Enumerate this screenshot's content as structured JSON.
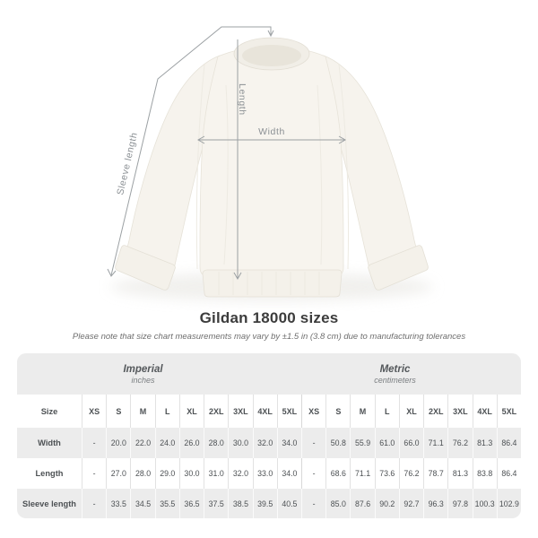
{
  "diagram": {
    "labels": {
      "length": "Length",
      "width": "Width",
      "sleeve": "Sleeve length"
    }
  },
  "title": "Gildan 18000 sizes",
  "subtitle": "Please note that size chart measurements may vary by ±1.5 in (3.8 cm) due to manufacturing tolerances",
  "size_table": {
    "corner_header": "Size",
    "unit_groups": [
      {
        "name": "Imperial",
        "unit": "inches"
      },
      {
        "name": "Metric",
        "unit": "centimeters"
      }
    ],
    "size_headers": [
      "XS",
      "S",
      "M",
      "L",
      "XL",
      "2XL",
      "3XL",
      "4XL",
      "5XL",
      "XS",
      "S",
      "M",
      "L",
      "XL",
      "2XL",
      "3XL",
      "4XL",
      "5XL"
    ],
    "rows": [
      {
        "label": "Width",
        "values": [
          "-",
          "20.0",
          "22.0",
          "24.0",
          "26.0",
          "28.0",
          "30.0",
          "32.0",
          "34.0",
          "-",
          "50.8",
          "55.9",
          "61.0",
          "66.0",
          "71.1",
          "76.2",
          "81.3",
          "86.4"
        ]
      },
      {
        "label": "Length",
        "values": [
          "-",
          "27.0",
          "28.0",
          "29.0",
          "30.0",
          "31.0",
          "32.0",
          "33.0",
          "34.0",
          "-",
          "68.6",
          "71.1",
          "73.6",
          "76.2",
          "78.7",
          "81.3",
          "83.8",
          "86.4"
        ]
      },
      {
        "label": "Sleeve length",
        "values": [
          "-",
          "33.5",
          "34.5",
          "35.5",
          "36.5",
          "37.5",
          "38.5",
          "39.5",
          "40.5",
          "-",
          "85.0",
          "87.6",
          "90.2",
          "92.7",
          "96.3",
          "97.8",
          "100.3",
          "102.9"
        ]
      }
    ]
  },
  "colors": {
    "table_band": "#ececec",
    "garment": "#f7f4ee",
    "dimension_line": "#9ba0a3"
  }
}
